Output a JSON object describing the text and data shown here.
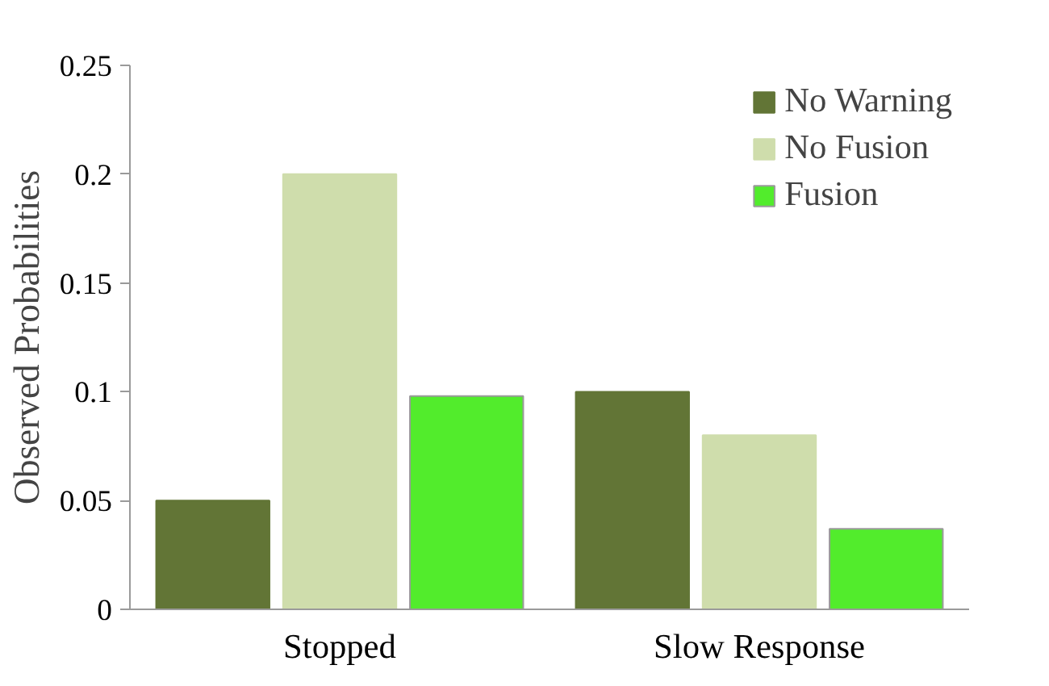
{
  "chart_data": {
    "type": "bar",
    "ylabel": "Observed Probabilities",
    "categories": [
      "Stopped",
      "Slow Response"
    ],
    "series": [
      {
        "name": "No Warning",
        "color": "#627536",
        "values": [
          0.05,
          0.1
        ]
      },
      {
        "name": "No Fusion",
        "color": "#cfddac",
        "values": [
          0.2,
          0.08
        ]
      },
      {
        "name": "Fusion",
        "color": "#52ec2c",
        "values": [
          0.098,
          0.037
        ]
      }
    ],
    "ylim": [
      0,
      0.25
    ],
    "yticks": [
      0,
      0.05,
      0.1,
      0.15,
      0.2,
      0.25
    ],
    "grid": false,
    "legend": "top right"
  }
}
